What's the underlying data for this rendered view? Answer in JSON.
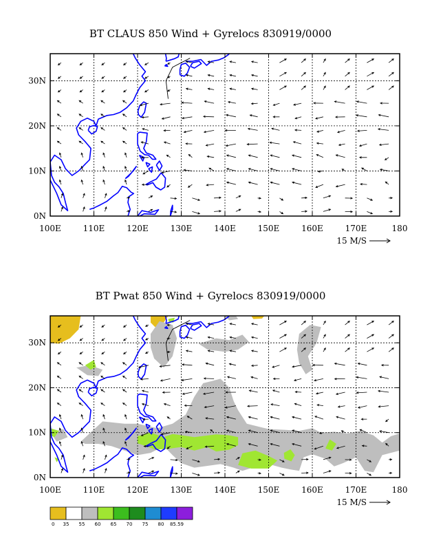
{
  "panels": [
    {
      "title": "BT CLAUS 850 Wind + Gyrelocs 830919/0000",
      "shading": false
    },
    {
      "title": "BT Pwat 850 Wind + Gyrelocs 830919/0000",
      "shading": true
    }
  ],
  "axes": {
    "x_ticks": [
      "100E",
      "110E",
      "120E",
      "130E",
      "140E",
      "150E",
      "160E",
      "170E",
      "180"
    ],
    "y_ticks": [
      "0N",
      "10N",
      "20N",
      "30N"
    ],
    "lon_range": [
      100,
      180
    ],
    "lat_range": [
      0,
      36
    ]
  },
  "vector_scale_label": "15 M/S",
  "colorbar": {
    "labels": [
      "0",
      "35",
      "55",
      "60",
      "65",
      "70",
      "75",
      "80",
      "85.59"
    ],
    "colors": [
      "#e6be1e",
      "#ffffff",
      "#bebebe",
      "#a0e632",
      "#3cbe1e",
      "#1e8c1e",
      "#1e8cd2",
      "#1e3cff",
      "#8c1edc"
    ]
  },
  "colors": {
    "coastline": "#0000ff",
    "vectors": "#000000",
    "grid": "#000000"
  }
}
